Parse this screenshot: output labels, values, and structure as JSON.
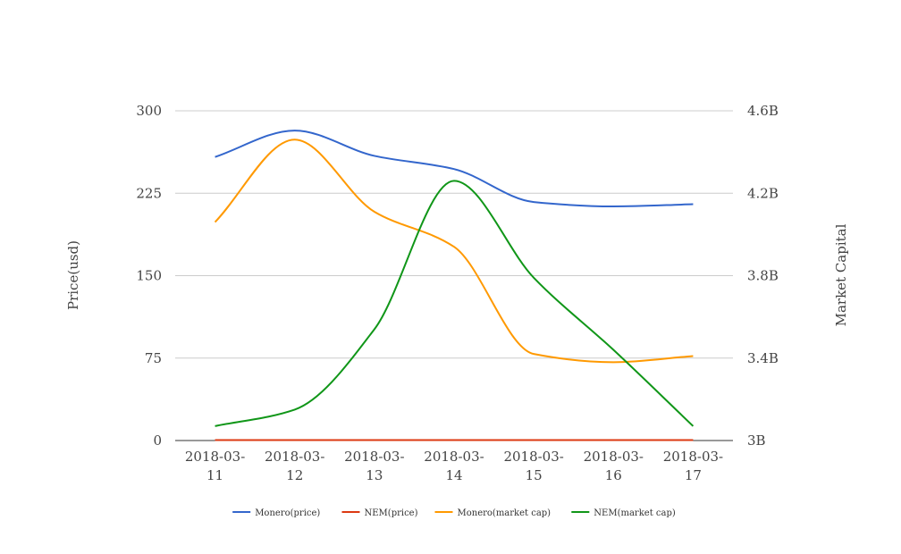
{
  "chart_data": {
    "type": "line",
    "categories": [
      "2018-03-11",
      "2018-03-12",
      "2018-03-13",
      "2018-03-14",
      "2018-03-15",
      "2018-03-16",
      "2018-03-17"
    ],
    "category_labels": [
      [
        "2018-03-",
        "11"
      ],
      [
        "2018-03-",
        "12"
      ],
      [
        "2018-03-",
        "13"
      ],
      [
        "2018-03-",
        "14"
      ],
      [
        "2018-03-",
        "15"
      ],
      [
        "2018-03-",
        "16"
      ],
      [
        "2018-03-",
        "17"
      ]
    ],
    "y_left": {
      "label": "Price(usd)",
      "ylim": [
        0,
        300
      ],
      "ticks": [
        0,
        75,
        150,
        225,
        300
      ],
      "tick_labels": [
        "0",
        "75",
        "150",
        "225",
        "300"
      ]
    },
    "y_right": {
      "label": "Market Capital",
      "ylim": [
        3000000000,
        4600000000
      ],
      "ticks": [
        3000000000,
        3400000000,
        3800000000,
        4200000000,
        4600000000
      ],
      "tick_labels": [
        "3B",
        "3.4B",
        "3.8B",
        "4.2B",
        "4.6B"
      ]
    },
    "grid": true,
    "legend_position": "bottom",
    "series": [
      {
        "name": "Monero(price)",
        "axis": "left",
        "color": "#3366cc",
        "values": [
          258,
          282,
          259,
          247,
          217,
          213,
          215
        ]
      },
      {
        "name": "NEM(price)",
        "axis": "left",
        "color": "#dc3912",
        "values": [
          0.4,
          0.4,
          0.4,
          0.4,
          0.4,
          0.4,
          0.4
        ]
      },
      {
        "name": "Monero(market cap)",
        "axis": "right",
        "color": "#ff9900",
        "values": [
          4060000000,
          4460000000,
          4110000000,
          3940000000,
          3420000000,
          3380000000,
          3410000000
        ]
      },
      {
        "name": "NEM(market cap)",
        "axis": "right",
        "color": "#109618",
        "values": [
          3070000000,
          3150000000,
          3540000000,
          4260000000,
          3790000000,
          3440000000,
          3070000000
        ]
      }
    ]
  }
}
